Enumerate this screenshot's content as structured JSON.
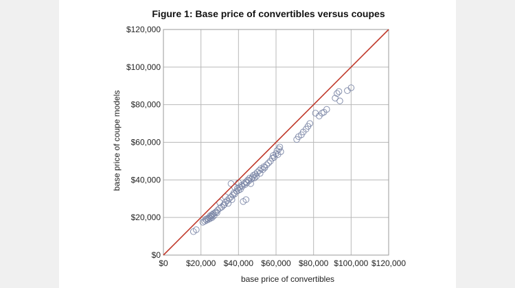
{
  "chart_data": {
    "type": "scatter",
    "title": "Figure 1: Base price of convertibles versus coupes",
    "xlabel": "base price of convertibles",
    "ylabel": "base price of coupe models",
    "xlim": [
      0,
      120000
    ],
    "ylim": [
      0,
      120000
    ],
    "x_ticks": [
      0,
      20000,
      40000,
      60000,
      80000,
      100000,
      120000
    ],
    "y_ticks": [
      0,
      20000,
      40000,
      60000,
      80000,
      100000,
      120000
    ],
    "x_tick_labels": [
      "$0",
      "$20,000",
      "$40,000",
      "$60,000",
      "$80,000",
      "$100,000",
      "$120,000"
    ],
    "y_tick_labels": [
      "$0",
      "$20,000",
      "$40,000",
      "$60,000",
      "$80,000",
      "$100,000",
      "$120,000"
    ],
    "grid": true,
    "colors": {
      "points": "#7b86a6",
      "reference_line": "#c0392b",
      "grid": "#b8b8b8"
    },
    "reference_line": {
      "label": "",
      "from": [
        0,
        0
      ],
      "to": [
        120000,
        120000
      ]
    },
    "series": [
      {
        "points": [
          [
            16000,
            12500
          ],
          [
            17500,
            13500
          ],
          [
            21000,
            17500
          ],
          [
            22000,
            18000
          ],
          [
            22500,
            19000
          ],
          [
            23000,
            18500
          ],
          [
            23500,
            19500
          ],
          [
            24000,
            19000
          ],
          [
            24500,
            20000
          ],
          [
            25000,
            19500
          ],
          [
            25000,
            21000
          ],
          [
            25500,
            20500
          ],
          [
            26000,
            20000
          ],
          [
            26000,
            21500
          ],
          [
            26500,
            22000
          ],
          [
            27000,
            21000
          ],
          [
            27500,
            22500
          ],
          [
            28000,
            23000
          ],
          [
            28500,
            22500
          ],
          [
            29000,
            24000
          ],
          [
            30000,
            25000
          ],
          [
            31000,
            25500
          ],
          [
            32000,
            26500
          ],
          [
            32500,
            27000
          ],
          [
            33000,
            28000
          ],
          [
            34000,
            29000
          ],
          [
            34500,
            27500
          ],
          [
            35000,
            30000
          ],
          [
            36000,
            31000
          ],
          [
            36500,
            29500
          ],
          [
            37000,
            32000
          ],
          [
            37500,
            33000
          ],
          [
            38000,
            32500
          ],
          [
            39000,
            34000
          ],
          [
            39500,
            35500
          ],
          [
            40000,
            34500
          ],
          [
            40500,
            36000
          ],
          [
            41000,
            35000
          ],
          [
            41500,
            37000
          ],
          [
            42000,
            36500
          ],
          [
            42500,
            28500
          ],
          [
            43000,
            38000
          ],
          [
            43500,
            37500
          ],
          [
            44000,
            39000
          ],
          [
            44000,
            29500
          ],
          [
            44500,
            38500
          ],
          [
            45000,
            40000
          ],
          [
            45500,
            39500
          ],
          [
            46000,
            41000
          ],
          [
            46500,
            38000
          ],
          [
            47000,
            40500
          ],
          [
            47500,
            41500
          ],
          [
            48000,
            42500
          ],
          [
            48500,
            41000
          ],
          [
            49000,
            43000
          ],
          [
            49500,
            42000
          ],
          [
            50000,
            44000
          ],
          [
            51000,
            45000
          ],
          [
            51500,
            43500
          ],
          [
            52000,
            46000
          ],
          [
            53000,
            45500
          ],
          [
            53500,
            47000
          ],
          [
            54000,
            46500
          ],
          [
            55000,
            48000
          ],
          [
            56000,
            49000
          ],
          [
            57000,
            50000
          ],
          [
            58000,
            51500
          ],
          [
            58500,
            53000
          ],
          [
            59000,
            52000
          ],
          [
            60000,
            54000
          ],
          [
            60500,
            55500
          ],
          [
            61000,
            53500
          ],
          [
            61500,
            56500
          ],
          [
            62000,
            57500
          ],
          [
            62500,
            55000
          ],
          [
            38000,
            36000
          ],
          [
            36000,
            38000
          ],
          [
            40000,
            38500
          ],
          [
            33000,
            31000
          ],
          [
            30000,
            28000
          ],
          [
            71000,
            61500
          ],
          [
            72000,
            63000
          ],
          [
            73500,
            64000
          ],
          [
            74500,
            65500
          ],
          [
            76000,
            67000
          ],
          [
            77000,
            68500
          ],
          [
            78000,
            70000
          ],
          [
            81000,
            75500
          ],
          [
            83000,
            74000
          ],
          [
            84500,
            75500
          ],
          [
            85500,
            76000
          ],
          [
            87000,
            77500
          ],
          [
            91500,
            83500
          ],
          [
            92500,
            86000
          ],
          [
            93500,
            87000
          ],
          [
            94000,
            82000
          ],
          [
            98000,
            87500
          ],
          [
            100000,
            89000
          ]
        ]
      }
    ]
  }
}
